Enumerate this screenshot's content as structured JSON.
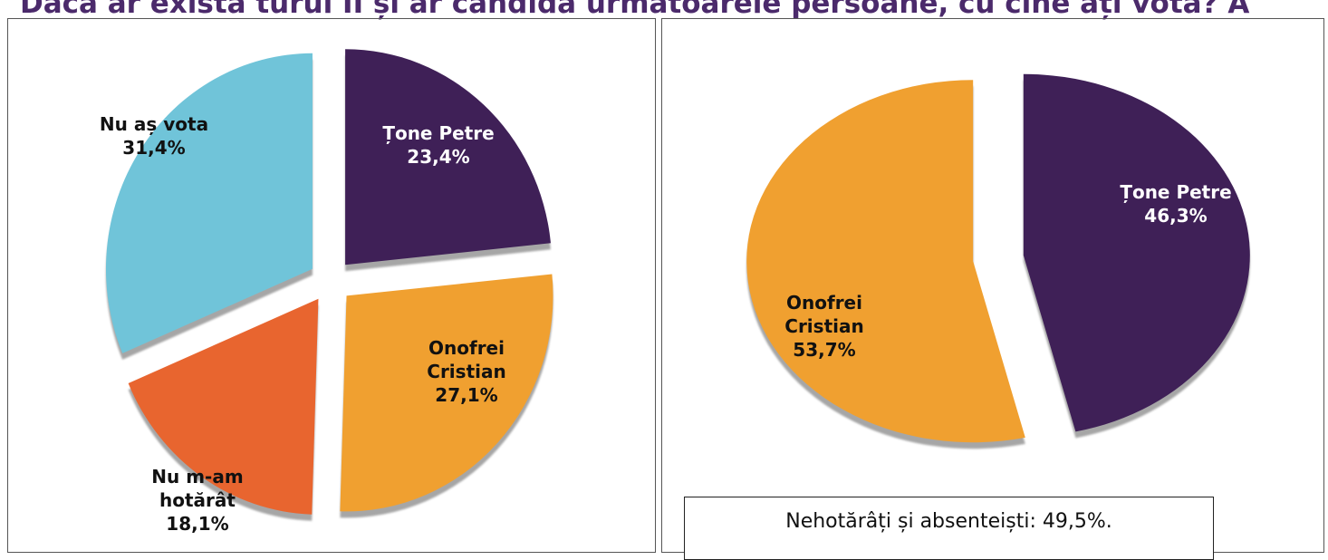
{
  "title": "Dacă ar exista turul II și ar candida următoarele persoane, cu cine ați vota? A",
  "chart_data": [
    {
      "type": "pie",
      "categories": [
        "Țone Petre",
        "Onofrei Cristian",
        "Nu m-am hotărât",
        "Nu aș vota"
      ],
      "values": [
        23.4,
        27.1,
        18.1,
        31.4
      ],
      "value_labels": [
        "23,4%",
        "27,1%",
        "18,1%",
        "31,4%"
      ],
      "colors": [
        "#3f2057",
        "#f0a030",
        "#e8652f",
        "#70c4d9"
      ]
    },
    {
      "type": "pie",
      "categories": [
        "Țone Petre",
        "Onofrei Cristian"
      ],
      "values": [
        46.3,
        53.7
      ],
      "value_labels": [
        "46,3%",
        "53,7%"
      ],
      "colors": [
        "#3f2057",
        "#f0a030"
      ],
      "annotation": "Nehotărâți și absenteiști: 49,5%."
    }
  ]
}
